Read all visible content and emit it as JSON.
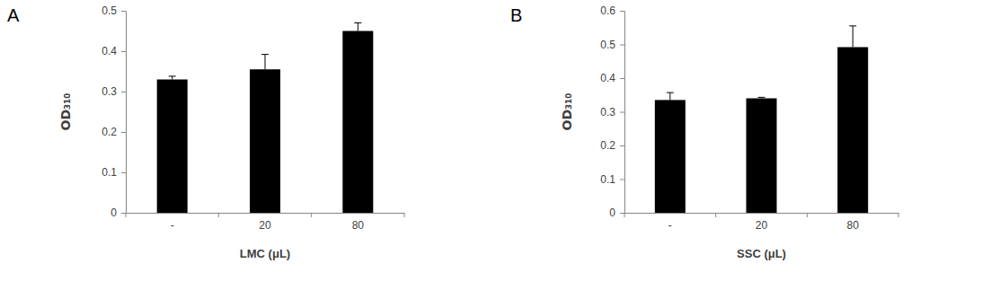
{
  "chart_data": [
    {
      "type": "bar",
      "title": "A",
      "categories": [
        "-",
        "20",
        "80"
      ],
      "values": [
        0.33,
        0.355,
        0.45
      ],
      "errors": [
        0.008,
        0.037,
        0.02
      ],
      "color": "#000000",
      "xlabel": "LMC (μL)",
      "ylabel": "OD₃₁₀",
      "ylim": [
        0,
        0.5
      ],
      "yticks": [
        0,
        0.1,
        0.2,
        0.3,
        0.4,
        0.5
      ]
    },
    {
      "type": "bar",
      "title": "B",
      "categories": [
        "-",
        "20",
        "80"
      ],
      "values": [
        0.335,
        0.34,
        0.492
      ],
      "errors": [
        0.022,
        0.003,
        0.063
      ],
      "color": "#000000",
      "xlabel": "SSC (μL)",
      "ylabel": "OD₃₁₀",
      "ylim": [
        0,
        0.6
      ],
      "yticks": [
        0,
        0.1,
        0.2,
        0.3,
        0.4,
        0.5,
        0.6
      ]
    }
  ]
}
